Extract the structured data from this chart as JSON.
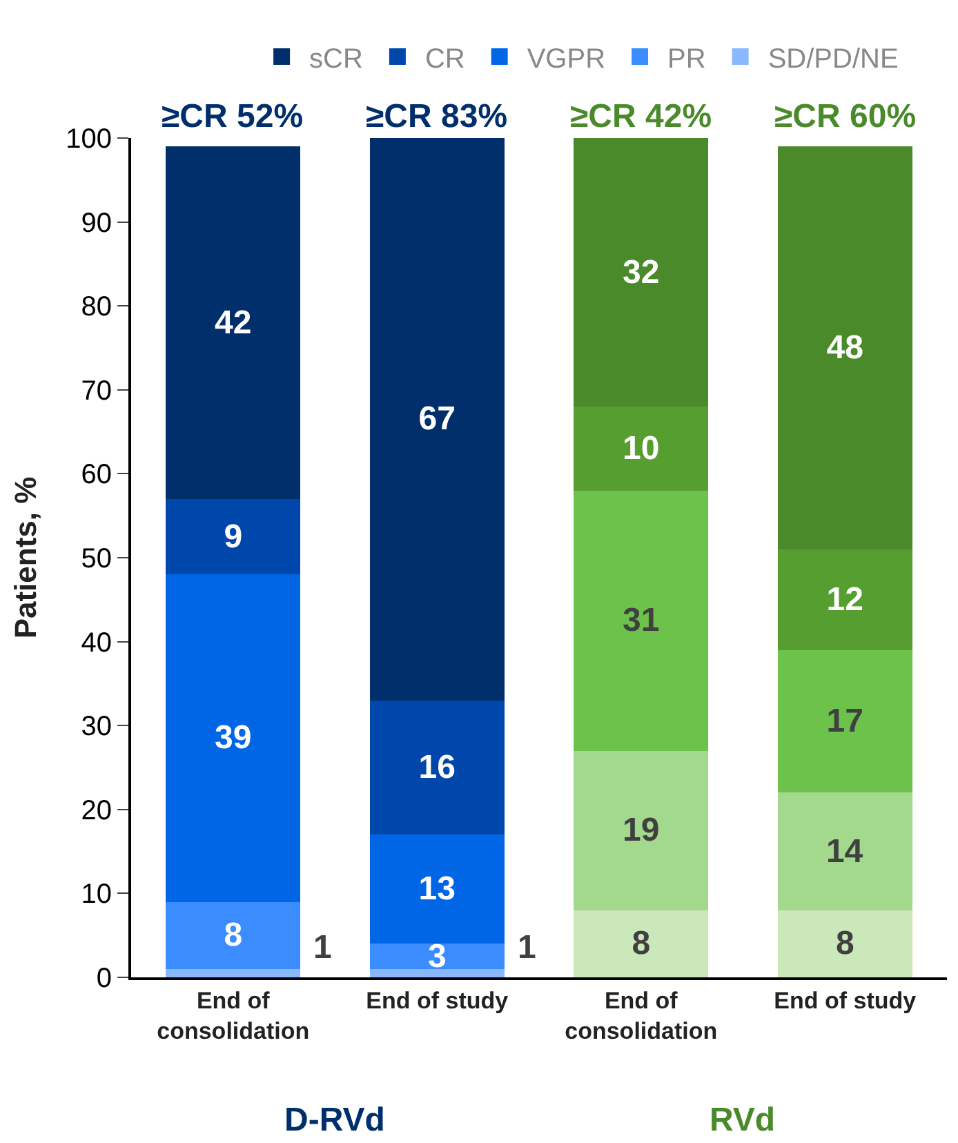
{
  "chart_data": {
    "type": "bar",
    "stacked": true,
    "categories": [
      "End of\nconsolidation",
      "End of study",
      "End of\nconsolidation",
      "End of study"
    ],
    "ylabel": "Patients, %",
    "ylim": [
      0,
      100
    ],
    "yticks": [
      0,
      10,
      20,
      30,
      40,
      50,
      60,
      70,
      80,
      90,
      100
    ],
    "legend": "top",
    "data_labels": true,
    "series": [
      {
        "name": "SD/PD/NE",
        "colors": [
          "#8ab8ff",
          "#8ab8ff",
          "#cbe8bb",
          "#cbe8bb"
        ],
        "values": [
          1,
          1,
          8,
          8
        ]
      },
      {
        "name": "PR",
        "colors": [
          "#3a8cff",
          "#3a8cff",
          "#a3d98c",
          "#a3d98c"
        ],
        "values": [
          8,
          3,
          19,
          14
        ]
      },
      {
        "name": "VGPR",
        "colors": [
          "#0066e6",
          "#0066e6",
          "#6cc24a",
          "#6cc24a"
        ],
        "values": [
          39,
          13,
          31,
          17
        ]
      },
      {
        "name": "CR",
        "colors": [
          "#0047ab",
          "#0047ab",
          "#559e2f",
          "#559e2f"
        ],
        "values": [
          9,
          16,
          10,
          12
        ]
      },
      {
        "name": "sCR",
        "colors": [
          "#002f6c",
          "#002f6c",
          "#4a8a2a",
          "#4a8a2a"
        ],
        "values": [
          42,
          67,
          32,
          48
        ]
      }
    ],
    "annotations": [
      "≥CR 52%",
      "≥CR 83%",
      "≥CR 42%",
      "≥CR 60%",
      "D-RVd",
      "RVd"
    ]
  }
}
